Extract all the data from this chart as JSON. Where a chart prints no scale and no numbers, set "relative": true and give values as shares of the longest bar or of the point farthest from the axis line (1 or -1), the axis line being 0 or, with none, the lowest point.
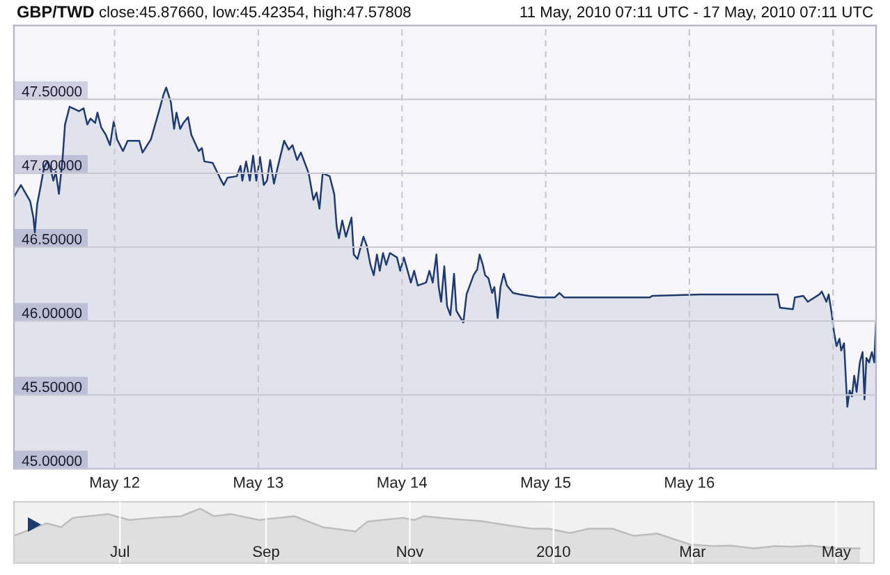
{
  "chart_data": [
    {
      "type": "area",
      "title": "GBP/TWD",
      "subtitle": "11 May, 2010 07:11 UTC - 17 May, 2010 07:11 UTC",
      "annotations": [
        "close:45.87660, low:45.42354, high:47.57808"
      ],
      "xlim": [
        "2010-05-11T07:11",
        "2010-05-17T07:11"
      ],
      "xticks": [
        {
          "value": "2010-05-12T00:00",
          "label": "May 12"
        },
        {
          "value": "2010-05-13T00:00",
          "label": "May 13"
        },
        {
          "value": "2010-05-14T00:00",
          "label": "May 14"
        },
        {
          "value": "2010-05-15T00:00",
          "label": "May 15"
        },
        {
          "value": "2010-05-16T00:00",
          "label": "May 16"
        },
        {
          "value": "2010-05-17T00:00",
          "label": null
        }
      ],
      "ylim": [
        45.0,
        48.0
      ],
      "yticks": [
        {
          "value": 45.0,
          "label": "45.00000"
        },
        {
          "value": 45.5,
          "label": "45.50000"
        },
        {
          "value": 46.0,
          "label": "46.00000"
        },
        {
          "value": 46.5,
          "label": "46.50000"
        },
        {
          "value": 47.0,
          "label": "47.00000"
        },
        {
          "value": 47.5,
          "label": "47.50000"
        }
      ],
      "grid": true,
      "x": [
        "2010-05-11T07:11",
        "2010-05-11T08:21",
        "2010-05-11T09:54",
        "2010-05-11T10:26",
        "2010-05-11T10:40",
        "2010-05-11T11:04",
        "2010-05-11T11:41",
        "2010-05-11T12:13",
        "2010-05-11T12:46",
        "2010-05-11T13:14",
        "2010-05-11T13:46",
        "2010-05-11T14:10",
        "2010-05-11T14:42",
        "2010-05-11T15:20",
        "2010-05-11T15:43",
        "2010-05-11T16:29",
        "2010-05-11T18:02",
        "2010-05-11T18:49",
        "2010-05-11T19:26",
        "2010-05-11T19:59",
        "2010-05-11T20:45",
        "2010-05-11T21:08",
        "2010-05-11T21:46",
        "2010-05-11T22:32",
        "2010-05-11T23:14",
        "2010-05-11T23:51",
        "2010-05-12T00:24",
        "2010-05-12T01:24",
        "2010-05-12T02:11",
        "2010-05-12T04:07",
        "2010-05-12T04:40",
        "2010-05-12T06:04",
        "2010-05-12T07:37",
        "2010-05-12T08:09",
        "2010-05-12T08:37",
        "2010-05-12T09:24",
        "2010-05-12T09:56",
        "2010-05-12T10:20",
        "2010-05-12T10:57",
        "2010-05-12T11:29",
        "2010-05-12T12:16",
        "2010-05-12T12:49",
        "2010-05-12T14:03",
        "2010-05-12T14:35",
        "2010-05-12T14:59",
        "2010-05-12T16:23",
        "2010-05-12T17:42",
        "2010-05-12T18:14",
        "2010-05-12T18:52",
        "2010-05-12T20:25",
        "2010-05-12T21:02",
        "2010-05-12T21:20",
        "2010-05-12T21:58",
        "2010-05-12T22:35",
        "2010-05-12T23:08",
        "2010-05-12T23:40",
        "2010-05-13T00:17",
        "2010-05-13T00:55",
        "2010-05-13T01:27",
        "2010-05-13T01:59",
        "2010-05-13T02:37",
        "2010-05-13T03:14",
        "2010-05-13T04:19",
        "2010-05-13T05:05",
        "2010-05-13T05:43",
        "2010-05-13T06:29",
        "2010-05-13T07:07",
        "2010-05-13T08:25",
        "2010-05-13T09:12",
        "2010-05-13T09:44",
        "2010-05-13T10:13",
        "2010-05-13T10:45",
        "2010-05-13T11:55",
        "2010-05-13T12:41",
        "2010-05-13T13:05",
        "2010-05-13T13:28",
        "2010-05-13T14:01",
        "2010-05-13T14:38",
        "2010-05-13T15:34",
        "2010-05-13T15:57",
        "2010-05-13T16:34",
        "2010-05-13T17:34",
        "2010-05-13T18:07",
        "2010-05-13T18:44",
        "2010-05-13T19:17",
        "2010-05-13T19:49",
        "2010-05-13T20:17",
        "2010-05-13T20:50",
        "2010-05-13T21:22",
        "2010-05-13T21:59",
        "2010-05-13T23:10",
        "2010-05-13T23:42",
        "2010-05-14T00:19",
        "2010-05-14T01:29",
        "2010-05-14T02:02",
        "2010-05-14T02:39",
        "2010-05-14T04:02",
        "2010-05-14T04:35",
        "2010-05-14T05:08",
        "2010-05-14T05:45",
        "2010-05-14T06:08",
        "2010-05-14T06:32",
        "2010-05-14T07:04",
        "2010-05-14T07:32",
        "2010-05-14T08:05",
        "2010-05-14T08:42",
        "2010-05-14T09:05",
        "2010-05-14T10:15",
        "2010-05-14T10:47",
        "2010-05-14T11:57",
        "2010-05-14T12:34",
        "2010-05-14T12:58",
        "2010-05-14T13:30",
        "2010-05-14T13:53",
        "2010-05-14T14:26",
        "2010-05-14T15:03",
        "2010-05-14T15:26",
        "2010-05-14T15:59",
        "2010-05-14T16:27",
        "2010-05-14T16:59",
        "2010-05-14T17:32",
        "2010-05-14T18:32",
        "2010-05-14T19:43",
        "2010-05-14T22:49",
        "2010-05-15T01:31",
        "2010-05-15T02:18",
        "2010-05-15T03:04",
        "2010-05-15T05:01",
        "2010-05-15T07:44",
        "2010-05-15T17:25",
        "2010-05-15T17:49",
        "2010-05-16T01:57",
        "2010-05-16T14:44",
        "2010-05-16T15:08",
        "2010-05-16T17:18",
        "2010-05-16T17:37",
        "2010-05-16T19:01",
        "2010-05-16T19:47",
        "2010-05-16T21:43",
        "2010-05-16T22:07",
        "2010-05-16T22:53",
        "2010-05-16T23:16",
        "2010-05-16T23:49",
        "2010-05-17T00:08",
        "2010-05-17T00:35",
        "2010-05-17T01:04",
        "2010-05-17T01:22",
        "2010-05-17T01:50",
        "2010-05-17T02:23",
        "2010-05-17T02:46",
        "2010-05-17T03:09",
        "2010-05-17T03:32",
        "2010-05-17T03:56",
        "2010-05-17T04:28",
        "2010-05-17T04:56",
        "2010-05-17T05:15",
        "2010-05-17T05:34",
        "2010-05-17T06:01",
        "2010-05-17T06:29",
        "2010-05-17T06:53",
        "2010-05-17T07:11"
      ],
      "series": [
        {
          "color": "#1f3a6e",
          "values": [
            46.84,
            46.92,
            46.81,
            46.7,
            46.6,
            46.79,
            46.92,
            47.04,
            47.08,
            47.04,
            46.95,
            47.01,
            46.86,
            47.11,
            47.33,
            47.45,
            47.42,
            47.44,
            47.33,
            47.37,
            47.34,
            47.41,
            47.31,
            47.26,
            47.19,
            47.35,
            47.23,
            47.15,
            47.22,
            47.22,
            47.14,
            47.23,
            47.45,
            47.53,
            47.58,
            47.48,
            47.3,
            47.41,
            47.3,
            47.34,
            47.38,
            47.26,
            47.15,
            47.17,
            47.08,
            47.07,
            46.96,
            46.92,
            46.97,
            46.98,
            47.05,
            46.95,
            47.08,
            46.95,
            47.12,
            46.95,
            47.11,
            46.92,
            46.95,
            47.09,
            46.93,
            47.04,
            47.22,
            47.16,
            47.19,
            47.09,
            47.14,
            47.0,
            46.82,
            46.87,
            46.76,
            47.0,
            46.98,
            46.86,
            46.64,
            46.56,
            46.68,
            46.57,
            46.7,
            46.45,
            46.42,
            46.57,
            46.51,
            46.38,
            46.31,
            46.45,
            46.34,
            46.46,
            46.38,
            46.46,
            46.43,
            46.34,
            46.43,
            46.26,
            46.34,
            46.24,
            46.26,
            46.34,
            46.26,
            46.45,
            46.23,
            46.13,
            46.37,
            46.1,
            46.04,
            46.32,
            46.07,
            45.99,
            46.18,
            46.31,
            46.35,
            46.45,
            46.38,
            46.31,
            46.29,
            46.19,
            46.23,
            46.02,
            46.23,
            46.32,
            46.24,
            46.19,
            46.18,
            46.16,
            46.16,
            46.19,
            46.16,
            46.16,
            46.16,
            46.16,
            46.17,
            46.18,
            46.18,
            46.09,
            46.08,
            46.16,
            46.17,
            46.13,
            46.18,
            46.2,
            46.13,
            46.18,
            46.04,
            45.93,
            45.83,
            45.88,
            45.8,
            45.85,
            45.42,
            45.53,
            45.49,
            45.63,
            45.52,
            45.72,
            45.79,
            45.47,
            45.75,
            45.72,
            45.79,
            45.72,
            46.0
          ]
        }
      ]
    },
    {
      "type": "area",
      "relative": true,
      "tick_labels": "x",
      "grid": "x",
      "xlim": [
        "2009-05-17",
        "2010-05-17"
      ],
      "xticks": [
        {
          "value": "2009-07-01",
          "label": "Jul"
        },
        {
          "value": "2009-09-01",
          "label": "Sep"
        },
        {
          "value": "2009-11-01",
          "label": "Nov"
        },
        {
          "value": "2010-01-01",
          "label": "2010"
        },
        {
          "value": "2010-03-01",
          "label": "Mar"
        },
        {
          "value": "2010-05-01",
          "label": "May"
        }
      ],
      "x": [
        "2009-05-17",
        "2009-05-31",
        "2009-06-06",
        "2009-06-11",
        "2009-06-26",
        "2009-07-05",
        "2009-07-15",
        "2009-07-27",
        "2009-08-04",
        "2009-08-10",
        "2009-08-17",
        "2009-08-29",
        "2009-09-13",
        "2009-09-25",
        "2009-10-09",
        "2009-10-14",
        "2009-10-29",
        "2009-11-03",
        "2009-11-07",
        "2009-11-19",
        "2009-12-01",
        "2009-12-13",
        "2009-12-23",
        "2009-12-30",
        "2010-01-08",
        "2010-01-16",
        "2010-01-26",
        "2010-02-04",
        "2010-02-14",
        "2010-02-28",
        "2010-03-10",
        "2010-03-17",
        "2010-03-27",
        "2010-04-05",
        "2010-04-12",
        "2010-04-20",
        "2010-04-29",
        "2010-05-11"
      ],
      "series": [
        {
          "color": "#bdbdbd",
          "values": [
            0.5,
            0.73,
            0.66,
            0.83,
            0.9,
            0.79,
            0.83,
            0.86,
            1.0,
            0.86,
            0.9,
            0.79,
            0.86,
            0.66,
            0.58,
            0.76,
            0.83,
            0.79,
            0.86,
            0.81,
            0.77,
            0.69,
            0.63,
            0.63,
            0.55,
            0.63,
            0.63,
            0.5,
            0.54,
            0.34,
            0.31,
            0.32,
            0.27,
            0.31,
            0.3,
            0.32,
            0.28,
            0.27
          ]
        }
      ]
    }
  ]
}
